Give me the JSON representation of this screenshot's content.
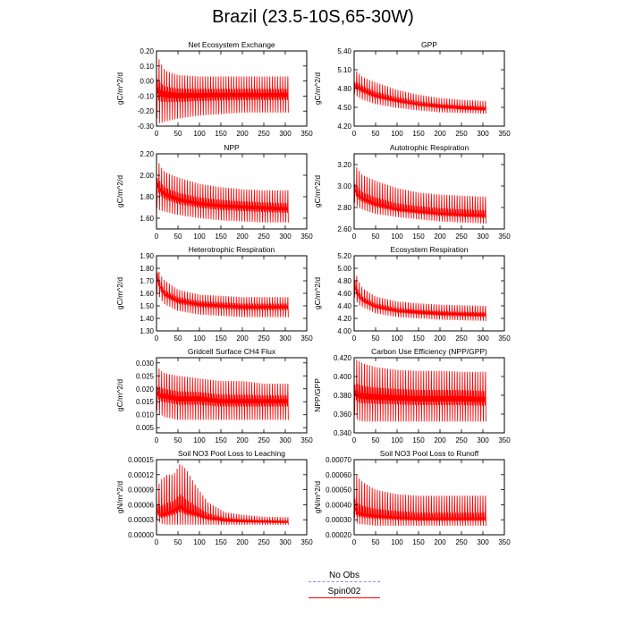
{
  "figure": {
    "title": "Brazil (23.5-10S,65-30W)"
  },
  "colors": {
    "series": "#ff0000",
    "obs": "#8a8aff"
  },
  "legend": {
    "entries": [
      {
        "label": "No Obs",
        "color": "#8a8aff",
        "style": "dashed"
      },
      {
        "label": "Spin002",
        "color": "#ff0000",
        "style": "solid"
      }
    ]
  },
  "chart_data": [
    {
      "type": "line",
      "title": "Net Ecosystem Exchange",
      "xlabel": "",
      "ylabel": "gC/m^2/d",
      "xlim": [
        0,
        350
      ],
      "ylim": [
        -0.3,
        0.2
      ],
      "xticks": [
        "0",
        "50",
        "100",
        "150",
        "200",
        "250",
        "300",
        "350"
      ],
      "yticks": [
        "-0.30",
        "-0.20",
        "-0.10",
        "0.00",
        "0.10",
        "0.20"
      ],
      "series": [
        {
          "name": "Spin002",
          "x_range": [
            0,
            307
          ],
          "envelope": {
            "x": [
              0,
              5,
              10,
              20,
              50,
              100,
              150,
              200,
              250,
              307
            ],
            "upper": [
              0.16,
              0.15,
              0.12,
              0.07,
              0.04,
              0.03,
              0.03,
              0.03,
              0.03,
              0.03
            ],
            "lower": [
              -0.24,
              -0.28,
              -0.28,
              -0.27,
              -0.25,
              -0.23,
              -0.22,
              -0.21,
              -0.21,
              -0.21
            ],
            "mean": [
              -0.02,
              -0.05,
              -0.06,
              -0.07,
              -0.08,
              -0.08,
              -0.08,
              -0.08,
              -0.08,
              -0.08
            ]
          }
        }
      ]
    },
    {
      "type": "line",
      "title": "GPP",
      "xlabel": "",
      "ylabel": "gC/m^2/d",
      "xlim": [
        0,
        350
      ],
      "ylim": [
        4.2,
        5.4
      ],
      "xticks": [
        "0",
        "50",
        "100",
        "150",
        "200",
        "250",
        "300",
        "350"
      ],
      "yticks": [
        "4.20",
        "4.50",
        "4.80",
        "5.10",
        "5.40"
      ],
      "series": [
        {
          "name": "Spin002",
          "x_range": [
            0,
            307
          ],
          "envelope": {
            "x": [
              0,
              5,
              10,
              20,
              50,
              100,
              150,
              200,
              250,
              307
            ],
            "upper": [
              5.0,
              5.08,
              5.05,
              4.98,
              4.9,
              4.78,
              4.7,
              4.65,
              4.62,
              4.6
            ],
            "lower": [
              4.72,
              4.68,
              4.66,
              4.62,
              4.55,
              4.49,
              4.45,
              4.42,
              4.41,
              4.4
            ],
            "mean": [
              4.85,
              4.85,
              4.83,
              4.79,
              4.7,
              4.62,
              4.56,
              4.52,
              4.5,
              4.48
            ]
          }
        }
      ]
    },
    {
      "type": "line",
      "title": "NPP",
      "xlabel": "",
      "ylabel": "gC/m^2/d",
      "xlim": [
        0,
        350
      ],
      "ylim": [
        1.5,
        2.2
      ],
      "xticks": [
        "0",
        "50",
        "100",
        "150",
        "200",
        "250",
        "300",
        "350"
      ],
      "yticks": [
        "1.60",
        "1.80",
        "2.00",
        "2.20"
      ],
      "series": [
        {
          "name": "Spin002",
          "x_range": [
            0,
            307
          ],
          "envelope": {
            "x": [
              0,
              5,
              10,
              20,
              50,
              100,
              150,
              200,
              250,
              307
            ],
            "upper": [
              2.05,
              2.12,
              2.08,
              2.03,
              1.98,
              1.92,
              1.89,
              1.87,
              1.86,
              1.86
            ],
            "lower": [
              1.7,
              1.68,
              1.67,
              1.66,
              1.63,
              1.6,
              1.58,
              1.57,
              1.56,
              1.56
            ],
            "mean": [
              1.95,
              1.92,
              1.88,
              1.84,
              1.79,
              1.75,
              1.73,
              1.72,
              1.71,
              1.7
            ]
          }
        }
      ]
    },
    {
      "type": "line",
      "title": "Autotrophic Respiration",
      "xlabel": "",
      "ylabel": "gC/m^2/d",
      "xlim": [
        0,
        350
      ],
      "ylim": [
        2.6,
        3.3
      ],
      "xticks": [
        "0",
        "50",
        "100",
        "150",
        "200",
        "250",
        "300",
        "350"
      ],
      "yticks": [
        "2.60",
        "2.80",
        "3.00",
        "3.20"
      ],
      "series": [
        {
          "name": "Spin002",
          "x_range": [
            0,
            307
          ],
          "envelope": {
            "x": [
              0,
              5,
              10,
              20,
              50,
              100,
              150,
              200,
              250,
              307
            ],
            "upper": [
              3.1,
              3.18,
              3.15,
              3.1,
              3.05,
              2.98,
              2.94,
              2.92,
              2.91,
              2.9
            ],
            "lower": [
              2.85,
              2.82,
              2.8,
              2.78,
              2.74,
              2.71,
              2.69,
              2.67,
              2.66,
              2.65
            ],
            "mean": [
              3.0,
              2.95,
              2.92,
              2.89,
              2.84,
              2.79,
              2.77,
              2.75,
              2.74,
              2.73
            ]
          }
        }
      ]
    },
    {
      "type": "line",
      "title": "Heterotrophic Respiration",
      "xlabel": "",
      "ylabel": "gC/m^2/d",
      "xlim": [
        0,
        350
      ],
      "ylim": [
        1.3,
        1.9
      ],
      "xticks": [
        "0",
        "50",
        "100",
        "150",
        "200",
        "250",
        "300",
        "350"
      ],
      "yticks": [
        "1.30",
        "1.40",
        "1.50",
        "1.60",
        "1.70",
        "1.80",
        "1.90"
      ],
      "series": [
        {
          "name": "Spin002",
          "x_range": [
            0,
            307
          ],
          "envelope": {
            "x": [
              0,
              5,
              10,
              20,
              50,
              100,
              150,
              200,
              250,
              307
            ],
            "upper": [
              1.84,
              1.78,
              1.74,
              1.7,
              1.63,
              1.59,
              1.58,
              1.57,
              1.57,
              1.57
            ],
            "lower": [
              1.6,
              1.58,
              1.55,
              1.51,
              1.46,
              1.43,
              1.42,
              1.41,
              1.41,
              1.41
            ],
            "mean": [
              1.78,
              1.7,
              1.65,
              1.6,
              1.55,
              1.52,
              1.51,
              1.5,
              1.5,
              1.5
            ]
          }
        }
      ]
    },
    {
      "type": "line",
      "title": "Ecosystem Respiration",
      "xlabel": "",
      "ylabel": "gC/m^2/d",
      "xlim": [
        0,
        350
      ],
      "ylim": [
        4.0,
        5.2
      ],
      "xticks": [
        "0",
        "50",
        "100",
        "150",
        "200",
        "250",
        "300",
        "350"
      ],
      "yticks": [
        "4.00",
        "4.20",
        "4.40",
        "4.60",
        "4.80",
        "5.00",
        "5.20"
      ],
      "series": [
        {
          "name": "Spin002",
          "x_range": [
            0,
            307
          ],
          "envelope": {
            "x": [
              0,
              5,
              10,
              20,
              50,
              100,
              150,
              200,
              250,
              307
            ],
            "upper": [
              5.1,
              4.9,
              4.8,
              4.68,
              4.55,
              4.47,
              4.44,
              4.42,
              4.41,
              4.4
            ],
            "lower": [
              4.55,
              4.48,
              4.42,
              4.38,
              4.28,
              4.22,
              4.2,
              4.18,
              4.17,
              4.16
            ],
            "mean": [
              4.8,
              4.65,
              4.58,
              4.5,
              4.4,
              4.33,
              4.3,
              4.28,
              4.27,
              4.26
            ]
          }
        }
      ]
    },
    {
      "type": "line",
      "title": "Gridcell Surface CH4 Flux",
      "xlabel": "",
      "ylabel": "gC/m^2/d",
      "xlim": [
        0,
        350
      ],
      "ylim": [
        0.003,
        0.032
      ],
      "xticks": [
        "0",
        "50",
        "100",
        "150",
        "200",
        "250",
        "300",
        "350"
      ],
      "yticks": [
        "0.005",
        "0.010",
        "0.015",
        "0.020",
        "0.025",
        "0.030"
      ],
      "series": [
        {
          "name": "Spin002",
          "x_range": [
            0,
            307
          ],
          "envelope": {
            "x": [
              0,
              5,
              10,
              20,
              50,
              100,
              150,
              200,
              250,
              307
            ],
            "upper": [
              0.026,
              0.028,
              0.027,
              0.026,
              0.025,
              0.024,
              0.023,
              0.023,
              0.022,
              0.022
            ],
            "lower": [
              0.012,
              0.01,
              0.01,
              0.009,
              0.008,
              0.008,
              0.008,
              0.008,
              0.008,
              0.008
            ],
            "mean": [
              0.019,
              0.019,
              0.018,
              0.018,
              0.017,
              0.017,
              0.016,
              0.016,
              0.016,
              0.016
            ]
          }
        }
      ]
    },
    {
      "type": "line",
      "title": "Carbon Use Efficiency (NPP/GPP)",
      "xlabel": "",
      "ylabel": "NPP/GPP",
      "xlim": [
        0,
        350
      ],
      "ylim": [
        0.34,
        0.42
      ],
      "xticks": [
        "0",
        "50",
        "100",
        "150",
        "200",
        "250",
        "300",
        "350"
      ],
      "yticks": [
        "0.340",
        "0.360",
        "0.380",
        "0.400",
        "0.420"
      ],
      "series": [
        {
          "name": "Spin002",
          "x_range": [
            0,
            307
          ],
          "envelope": {
            "x": [
              0,
              5,
              10,
              20,
              50,
              100,
              150,
              200,
              250,
              307
            ],
            "upper": [
              0.405,
              0.418,
              0.417,
              0.414,
              0.41,
              0.407,
              0.406,
              0.406,
              0.405,
              0.405
            ],
            "lower": [
              0.36,
              0.355,
              0.353,
              0.352,
              0.352,
              0.352,
              0.352,
              0.352,
              0.352,
              0.352
            ],
            "mean": [
              0.385,
              0.385,
              0.383,
              0.382,
              0.381,
              0.38,
              0.379,
              0.379,
              0.379,
              0.378
            ]
          }
        }
      ]
    },
    {
      "type": "line",
      "title": "Soil NO3 Pool Loss to Leaching",
      "xlabel": "",
      "ylabel": "gN/m^2/d",
      "xlim": [
        0,
        350
      ],
      "ylim": [
        0.0,
        0.00015
      ],
      "xticks": [
        "0",
        "50",
        "100",
        "150",
        "200",
        "250",
        "300",
        "350"
      ],
      "yticks": [
        "0.00000",
        "0.00003",
        "0.00006",
        "0.00009",
        "0.00012",
        "0.00015"
      ],
      "series": [
        {
          "name": "Spin002",
          "x_range": [
            0,
            307
          ],
          "envelope": {
            "x": [
              0,
              10,
              25,
              40,
              55,
              70,
              90,
              120,
              160,
              200,
              250,
              307
            ],
            "upper": [
              9e-05,
              0.00011,
              0.00012,
              0.00012,
              0.000142,
              0.00013,
              0.0001,
              6.5e-05,
              4.5e-05,
              4e-05,
              3.6e-05,
              3.5e-05
            ],
            "lower": [
              3e-05,
              2.2e-05,
              2e-05,
              2e-05,
              2e-05,
              2e-05,
              2e-05,
              2e-05,
              2e-05,
              2e-05,
              2e-05,
              2e-05
            ],
            "mean": [
              5e-05,
              4e-05,
              4.5e-05,
              5e-05,
              6e-05,
              5e-05,
              4.5e-05,
              3.5e-05,
              3e-05,
              2.8e-05,
              2.7e-05,
              2.6e-05
            ]
          }
        }
      ]
    },
    {
      "type": "line",
      "title": "Soil NO3 Pool Loss to Runoff",
      "xlabel": "",
      "ylabel": "gN/m^2/d",
      "xlim": [
        0,
        350
      ],
      "ylim": [
        0.0002,
        0.0007
      ],
      "xticks": [
        "0",
        "50",
        "100",
        "150",
        "200",
        "250",
        "300",
        "350"
      ],
      "yticks": [
        "0.00020",
        "0.00030",
        "0.00040",
        "0.00050",
        "0.00060",
        "0.00070"
      ],
      "series": [
        {
          "name": "Spin002",
          "x_range": [
            0,
            307
          ],
          "envelope": {
            "x": [
              0,
              5,
              10,
              20,
              50,
              100,
              150,
              200,
              250,
              307
            ],
            "upper": [
              0.00055,
              0.0006,
              0.00058,
              0.00055,
              0.0005,
              0.00047,
              0.00046,
              0.00046,
              0.00046,
              0.00046
            ],
            "lower": [
              0.00032,
              0.00028,
              0.00027,
              0.00027,
              0.00026,
              0.00026,
              0.00026,
              0.00026,
              0.00026,
              0.00026
            ],
            "mean": [
              0.00042,
              0.00036,
              0.00035,
              0.00034,
              0.00033,
              0.00032,
              0.00031,
              0.00031,
              0.00031,
              0.00031
            ]
          }
        }
      ]
    }
  ]
}
